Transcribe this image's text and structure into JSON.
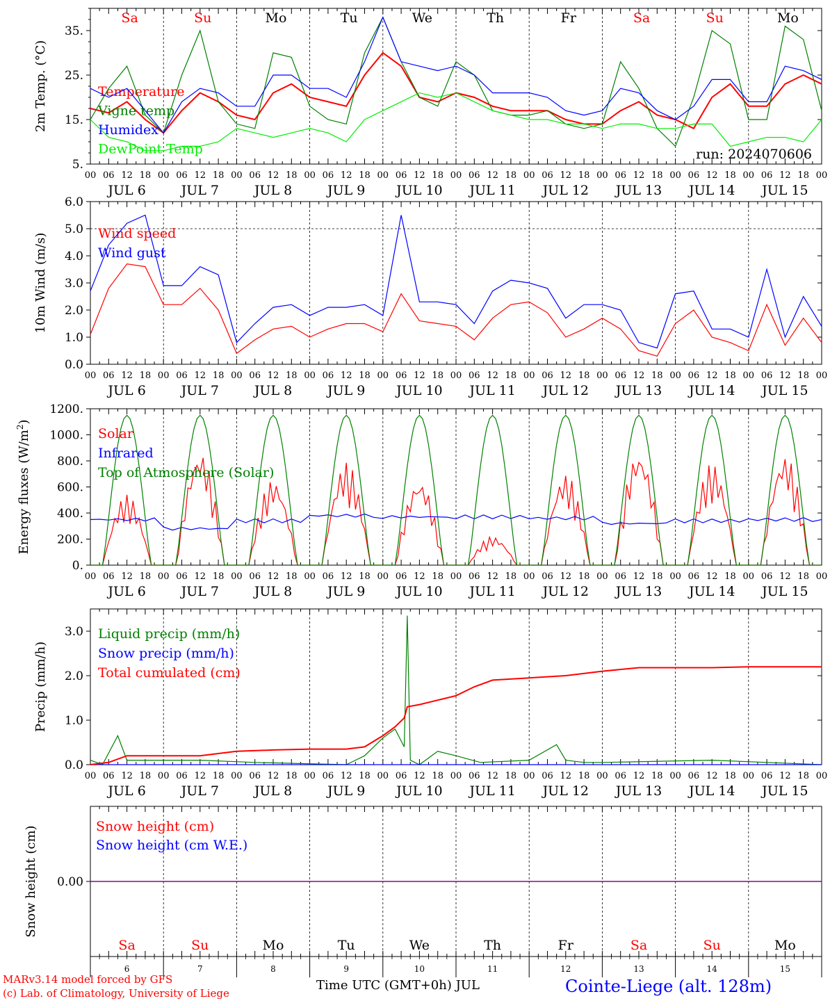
{
  "day_abbrevs": [
    "Sa",
    "Su",
    "Mo",
    "Tu",
    "We",
    "Th",
    "Fr",
    "Sa",
    "Su",
    "Mo"
  ],
  "day_colors": [
    "#ff0000",
    "#ff0000",
    "#000000",
    "#000000",
    "#000000",
    "#000000",
    "#000000",
    "#ff0000",
    "#ff0000",
    "#000000"
  ],
  "day_labels": [
    "JUL  6",
    "JUL  7",
    "JUL  8",
    "JUL  9",
    "JUL 10",
    "JUL 11",
    "JUL 12",
    "JUL 13",
    "JUL 14",
    "JUL 15"
  ],
  "bottom_day_numbers": [
    "6",
    "7",
    "8",
    "9",
    "10",
    "11",
    "12",
    "13",
    "14",
    "15"
  ],
  "hour_ticks": [
    "00",
    "06",
    "12",
    "18"
  ],
  "hour_tick_last": "00",
  "footer": {
    "model_line1": "MARv3.14 model forced by GFS",
    "model_line2": "(c) Lab. of Climatology, University of Liege",
    "xaxis_label": "Time UTC (GMT+0h) JUL",
    "station": "Cointe-Liege (alt. 128m)"
  },
  "colors": {
    "red": "#ff0000",
    "green": "#008000",
    "blue": "#0000ff",
    "lime": "#00ee00",
    "purple": "#800080"
  },
  "chart_data": [
    {
      "type": "line",
      "ylabel": "2m Temp. (°C)",
      "ylim": [
        5,
        40
      ],
      "yticks": [
        "5.",
        "15.",
        "25.",
        "35."
      ],
      "annotation": "run: 2024070606",
      "x_unit": "hours since JUL 6 00 UTC",
      "series": [
        {
          "name": "Temperature",
          "color": "#ff0000",
          "x": [
            0,
            6,
            12,
            18,
            24,
            30,
            36,
            42,
            48,
            54,
            60,
            66,
            72,
            78,
            84,
            90,
            96,
            102,
            108,
            114,
            120,
            126,
            132,
            138,
            144,
            150,
            156,
            162,
            168,
            174,
            180,
            186,
            192,
            198,
            204,
            210,
            216,
            222,
            228,
            234,
            240
          ],
          "values": [
            17.5,
            16.5,
            19,
            15,
            12,
            17,
            21,
            19,
            16,
            15,
            21,
            23,
            20,
            19,
            18,
            25,
            30,
            27,
            20,
            19,
            21,
            20,
            18,
            17,
            17,
            17,
            15,
            14,
            14,
            17,
            19,
            16,
            15,
            13,
            20,
            23,
            18,
            18,
            23,
            25,
            23
          ]
        },
        {
          "name": "Vigne temp",
          "color": "#008000",
          "x": [
            0,
            6,
            12,
            18,
            24,
            30,
            36,
            42,
            48,
            54,
            60,
            66,
            72,
            78,
            84,
            90,
            96,
            102,
            108,
            114,
            120,
            126,
            132,
            138,
            144,
            150,
            156,
            162,
            168,
            174,
            180,
            186,
            192,
            198,
            204,
            210,
            216,
            222,
            228,
            234,
            240
          ],
          "values": [
            15,
            22,
            27,
            16,
            12,
            25,
            35,
            19,
            14,
            13,
            30,
            29,
            18,
            15,
            14,
            30,
            38,
            28,
            20,
            18,
            28,
            25,
            17,
            16,
            16,
            17,
            14,
            13,
            14,
            28,
            22,
            13,
            9,
            20,
            35,
            32,
            15,
            15,
            36,
            33,
            17
          ]
        },
        {
          "name": "Humidex",
          "color": "#0000ff",
          "x": [
            0,
            6,
            12,
            18,
            24,
            30,
            36,
            42,
            48,
            54,
            60,
            66,
            72,
            78,
            84,
            90,
            96,
            102,
            108,
            114,
            120,
            126,
            132,
            138,
            144,
            150,
            156,
            162,
            168,
            174,
            180,
            186,
            192,
            198,
            204,
            210,
            216,
            222,
            228,
            234,
            240
          ],
          "values": [
            22,
            20,
            22,
            17,
            12,
            19,
            22,
            21,
            18,
            18,
            25,
            25,
            22,
            22,
            20,
            28,
            38,
            28,
            27,
            26,
            27,
            25,
            21,
            21,
            21,
            20,
            17,
            16,
            17,
            22,
            21,
            17,
            15,
            18,
            24,
            24,
            19,
            19,
            27,
            26,
            24
          ]
        },
        {
          "name": "DewPoint Temp",
          "color": "#00ee00",
          "x": [
            0,
            6,
            12,
            18,
            24,
            30,
            36,
            42,
            48,
            54,
            60,
            66,
            72,
            78,
            84,
            90,
            96,
            102,
            108,
            114,
            120,
            126,
            132,
            138,
            144,
            150,
            156,
            162,
            168,
            174,
            180,
            186,
            192,
            198,
            204,
            210,
            216,
            222,
            228,
            234,
            240
          ],
          "values": [
            15,
            11,
            10,
            8,
            8,
            9,
            9,
            10,
            13,
            12,
            11,
            12,
            13,
            12,
            10,
            15,
            17,
            19,
            21,
            20,
            21,
            19,
            17,
            16,
            15,
            15,
            14,
            14,
            13,
            14,
            14,
            13,
            13,
            14,
            14,
            9,
            10,
            11,
            11,
            10,
            15
          ]
        }
      ]
    },
    {
      "type": "line",
      "ylabel": "10m Wind (m/s)",
      "ylim": [
        0,
        6
      ],
      "yticks": [
        "0.0",
        "1.0",
        "2.0",
        "3.0",
        "4.0",
        "5.0",
        "6.0"
      ],
      "series": [
        {
          "name": "Wind speed",
          "color": "#ff0000",
          "x": [
            0,
            6,
            12,
            18,
            24,
            30,
            36,
            42,
            48,
            54,
            60,
            66,
            72,
            78,
            84,
            90,
            96,
            102,
            108,
            114,
            120,
            126,
            132,
            138,
            144,
            150,
            156,
            162,
            168,
            174,
            180,
            186,
            192,
            198,
            204,
            210,
            216,
            222,
            228,
            234,
            240
          ],
          "values": [
            1.1,
            2.8,
            3.7,
            3.6,
            2.2,
            2.2,
            2.8,
            2.0,
            0.4,
            0.9,
            1.3,
            1.4,
            1.0,
            1.3,
            1.5,
            1.5,
            1.2,
            2.6,
            1.6,
            1.5,
            1.4,
            0.9,
            1.7,
            2.2,
            2.3,
            1.9,
            1.0,
            1.3,
            1.7,
            1.3,
            0.5,
            0.3,
            1.5,
            2.0,
            1.0,
            0.8,
            0.5,
            2.2,
            0.7,
            1.7,
            0.8
          ]
        },
        {
          "name": "Wind gust",
          "color": "#0000ff",
          "x": [
            0,
            6,
            12,
            18,
            24,
            30,
            36,
            42,
            48,
            54,
            60,
            66,
            72,
            78,
            84,
            90,
            96,
            102,
            108,
            114,
            120,
            126,
            132,
            138,
            144,
            150,
            156,
            162,
            168,
            174,
            180,
            186,
            192,
            198,
            204,
            210,
            216,
            222,
            228,
            234,
            240
          ],
          "values": [
            2.7,
            4.4,
            5.2,
            5.5,
            2.9,
            2.9,
            3.6,
            3.3,
            0.8,
            1.5,
            2.1,
            2.2,
            1.8,
            2.1,
            2.1,
            2.2,
            1.8,
            5.5,
            2.3,
            2.3,
            2.2,
            1.5,
            2.7,
            3.1,
            3.0,
            2.8,
            1.7,
            2.2,
            2.2,
            2.0,
            0.8,
            0.6,
            2.6,
            2.7,
            1.3,
            1.3,
            1.0,
            3.5,
            1.0,
            2.5,
            1.4
          ]
        }
      ]
    },
    {
      "type": "line",
      "ylabel": "Energy fluxes (W/m2)",
      "ylim": [
        0,
        1200
      ],
      "yticks": [
        "0.",
        "200.",
        "400.",
        "600.",
        "800.",
        "1000.",
        "1200."
      ],
      "series": [
        {
          "name": "Solar",
          "color": "#ff0000",
          "peaks": [
            540,
            880,
            660,
            790,
            660,
            220,
            700,
            880,
            780,
            850
          ]
        },
        {
          "name": "Infrared",
          "color": "#0000ff",
          "values_day_avg": [
            350,
            280,
            340,
            380,
            370,
            370,
            360,
            320,
            340,
            350
          ]
        },
        {
          "name": "Top of Atmosphere (Solar)",
          "color": "#008000",
          "peaks": [
            1150,
            1150,
            1150,
            1150,
            1150,
            1150,
            1150,
            1150,
            1150,
            1150
          ]
        }
      ]
    },
    {
      "type": "line",
      "ylabel": "Precip (mm/h)",
      "ylim": [
        0,
        3.5
      ],
      "yticks": [
        "0.0",
        "1.0",
        "2.0",
        "3.0"
      ],
      "series": [
        {
          "name": "Liquid precip (mm/h)",
          "color": "#008000",
          "x": [
            0,
            4,
            9,
            12,
            36,
            54,
            84,
            90,
            96,
            100,
            103,
            104,
            105,
            108,
            114,
            120,
            128,
            144,
            153,
            156,
            162,
            168,
            204,
            240
          ],
          "values": [
            0.1,
            0,
            0.65,
            0.1,
            0.1,
            0.05,
            0,
            0.2,
            0.6,
            0.8,
            0.4,
            3.35,
            0.1,
            0,
            0.3,
            0.2,
            0.05,
            0.1,
            0.45,
            0.1,
            0.05,
            0.05,
            0.1,
            0
          ]
        },
        {
          "name": "Snow precip (mm/h)",
          "color": "#0000ff",
          "x": [
            0,
            240
          ],
          "values": [
            0,
            0
          ]
        },
        {
          "name": "Total cumulated (cm)",
          "color": "#ff0000",
          "x": [
            0,
            6,
            12,
            24,
            36,
            48,
            60,
            72,
            84,
            90,
            96,
            100,
            103,
            104,
            108,
            114,
            120,
            126,
            132,
            144,
            156,
            168,
            180,
            192,
            204,
            216,
            228,
            240
          ],
          "values": [
            0,
            0.05,
            0.2,
            0.2,
            0.2,
            0.3,
            0.33,
            0.35,
            0.35,
            0.4,
            0.65,
            0.85,
            1.05,
            1.3,
            1.35,
            1.45,
            1.55,
            1.75,
            1.9,
            1.95,
            2.0,
            2.1,
            2.18,
            2.18,
            2.18,
            2.2,
            2.2,
            2.2
          ]
        }
      ]
    },
    {
      "type": "line",
      "ylabel": "Snow height (cm)",
      "yticks": [
        "0.00"
      ],
      "series": [
        {
          "name": "Snow height (cm)",
          "color": "#ff0000",
          "x": [
            0,
            240
          ],
          "values": [
            0,
            0
          ]
        },
        {
          "name": "Snow height (cm W.E.)",
          "color": "#0000ff",
          "x": [
            0,
            240
          ],
          "values": [
            0,
            0
          ]
        }
      ]
    }
  ]
}
